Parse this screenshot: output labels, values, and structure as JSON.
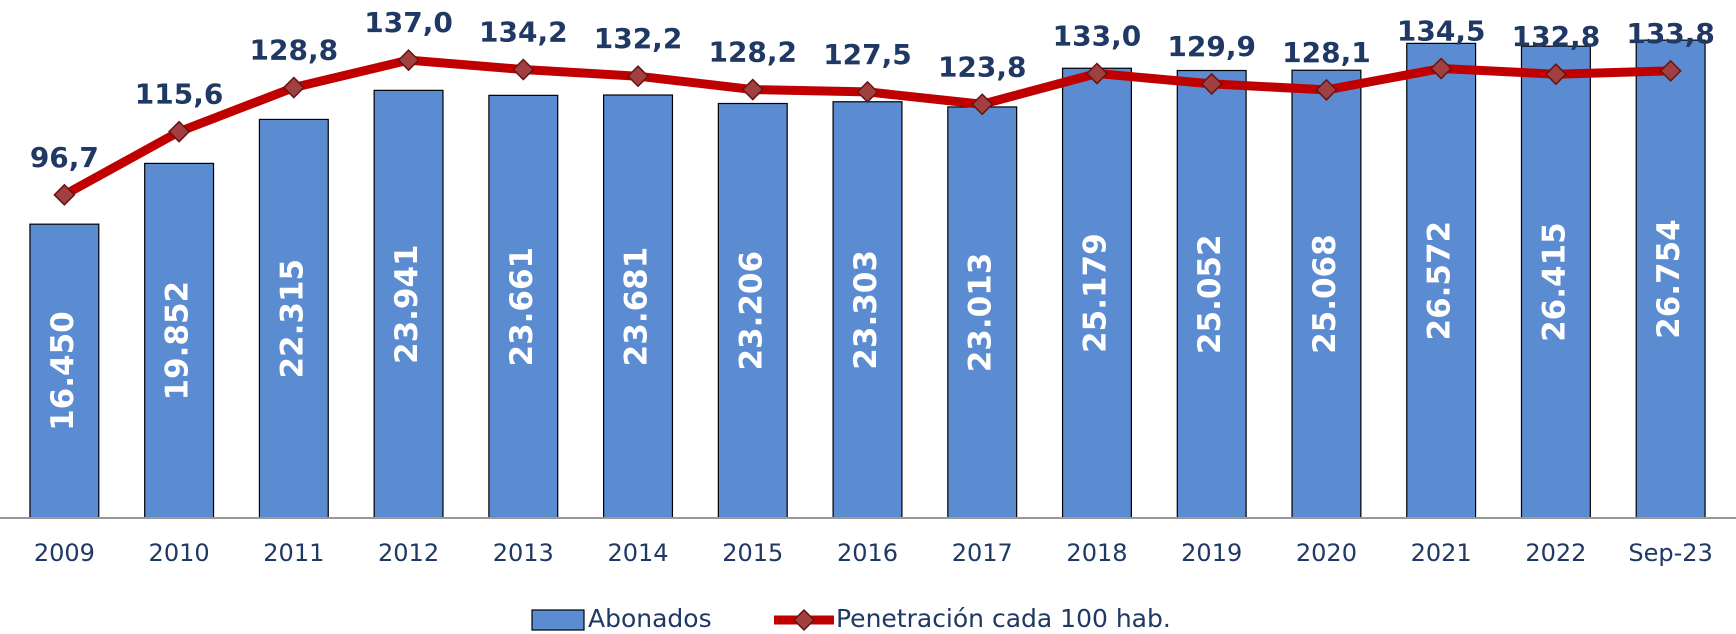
{
  "chart_data": {
    "type": "bar-line",
    "categories": [
      "2009",
      "2010",
      "2011",
      "2012",
      "2013",
      "2014",
      "2015",
      "2016",
      "2017",
      "2018",
      "2019",
      "2020",
      "2021",
      "2022",
      "Sep-23"
    ],
    "series": [
      {
        "name": "Abonados",
        "type": "bar",
        "color": "#5b8bd0",
        "values": [
          16450,
          19852,
          22315,
          23941,
          23661,
          23681,
          23206,
          23303,
          23013,
          25179,
          25052,
          25068,
          26572,
          26415,
          26754
        ],
        "value_labels": [
          "16.450",
          "19.852",
          "22.315",
          "23.941",
          "23.661",
          "23.681",
          "23.206",
          "23.303",
          "23.013",
          "25.179",
          "25.052",
          "25.068",
          "26.572",
          "26.415",
          "26.754"
        ]
      },
      {
        "name": "Penetración cada 100 hab.",
        "type": "line",
        "axis": "y2",
        "color": "#c00000",
        "values": [
          96.7,
          115.6,
          128.8,
          137.0,
          134.2,
          132.2,
          128.2,
          127.5,
          123.8,
          133.0,
          129.9,
          128.1,
          134.5,
          132.8,
          133.8
        ],
        "value_labels": [
          "96,7",
          "115,6",
          "128,8",
          "137,0",
          "134,2",
          "132,2",
          "128,2",
          "127,5",
          "123,8",
          "133,0",
          "129,9",
          "128,1",
          "134,5",
          "132,8",
          "133,8"
        ]
      }
    ],
    "ylim": [
      0,
      29000
    ],
    "y2lim": [
      0,
      155
    ],
    "legend": "bottom"
  }
}
